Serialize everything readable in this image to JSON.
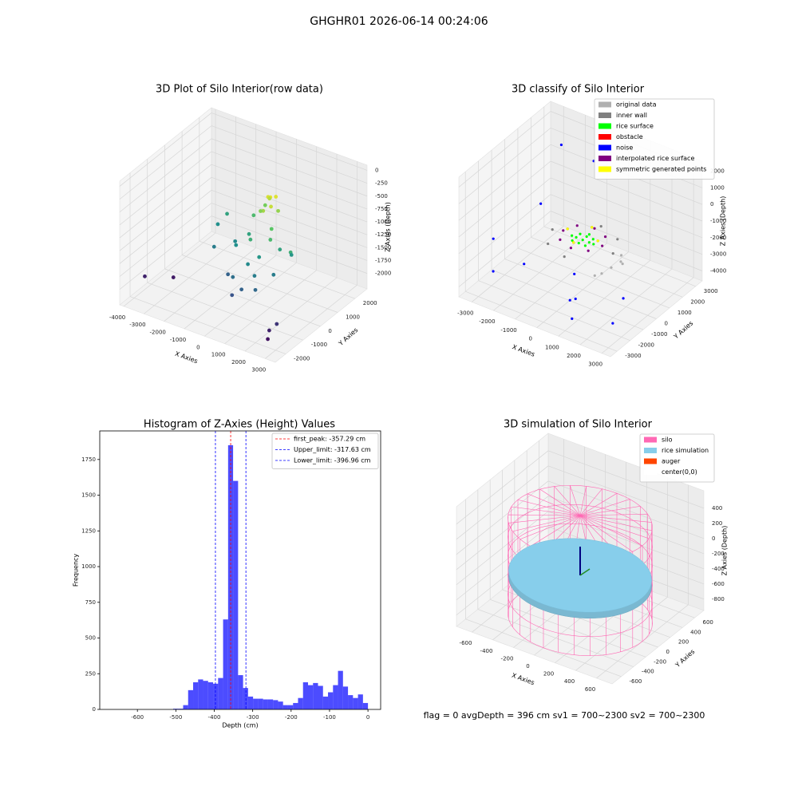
{
  "suptitle": "GHGHR01 2026-06-14 00:24:06",
  "footer": "flag = 0     avgDepth = 396 cm  sv1 = 700~2300  sv2 = 700~2300",
  "chart_data": [
    {
      "type": "scatter3d",
      "title": "3D Plot of Silo Interior(row data)",
      "cmap": "viridis",
      "xlabel": "X Axies",
      "ylabel": "Y Axies",
      "zlabel": "Z Axies (Depth)",
      "xlim": [
        -4200,
        3500
      ],
      "ylim": [
        -2600,
        2700
      ],
      "zlim": [
        -2300,
        100
      ],
      "xticks": [
        -4000,
        -3000,
        -2000,
        -1000,
        0,
        1000,
        2000,
        3000
      ],
      "yticks": [
        -2000,
        -1000,
        0,
        1000,
        2000
      ],
      "zticks": [
        -2000,
        -1750,
        -1500,
        -1250,
        -1000,
        -750,
        -500,
        -250,
        0
      ],
      "series": [
        {
          "x": [
            600,
            400,
            800,
            300,
            700,
            500,
            900,
            200,
            1000,
            1200,
            300,
            -200,
            900,
            1500,
            600,
            -500,
            1100,
            200,
            1700,
            -800,
            800,
            1400,
            -300,
            500,
            -1800,
            -2000,
            -1500,
            2200,
            1900,
            -3900,
            -3000,
            2600,
            2700,
            2800,
            0,
            -400
          ],
          "y": [
            500,
            600,
            300,
            800,
            700,
            200,
            600,
            400,
            100,
            -200,
            -300,
            200,
            -500,
            0,
            -800,
            -200,
            -1000,
            -1200,
            -600,
            100,
            -1400,
            -1300,
            -900,
            -1600,
            800,
            500,
            -300,
            -200,
            200,
            -1500,
            -900,
            -1900,
            -2100,
            -1700,
            900,
            700
          ],
          "z": [
            -350,
            -400,
            -450,
            -500,
            -380,
            -550,
            -600,
            -650,
            -800,
            -900,
            -1000,
            -1100,
            -1200,
            -1100,
            -1300,
            -1250,
            -1400,
            -1500,
            -1400,
            -1300,
            -1600,
            -1550,
            -1600,
            -1700,
            -1100,
            -1250,
            -1400,
            -1000,
            -1200,
            -2000,
            -2050,
            -2000,
            -2100,
            -1900,
            -700,
            -900
          ]
        }
      ]
    },
    {
      "type": "scatter3d",
      "title": "3D classify of Silo Interior",
      "xlabel": "X Axies",
      "ylabel": "Y Axies",
      "zlabel": "Z Axies (Depth)",
      "xlim": [
        -3600,
        3400
      ],
      "ylim": [
        -3500,
        3500
      ],
      "zlim": [
        -4600,
        2600
      ],
      "xticks": [
        -3000,
        -2000,
        -1000,
        0,
        1000,
        2000,
        3000
      ],
      "yticks": [
        -3000,
        -2000,
        -1000,
        0,
        1000,
        2000,
        3000
      ],
      "zticks": [
        -4000,
        -3000,
        -2000,
        -1000,
        0,
        1000,
        2000
      ],
      "series": [
        {
          "name": "original data",
          "color": "#b0b0b0",
          "x": [
            1500,
            1700,
            1300,
            1900,
            1100,
            1600
          ],
          "y": [
            -300,
            100,
            -700,
            -100,
            -900,
            300
          ],
          "z": [
            -2300,
            -2100,
            -2500,
            -2000,
            -2600,
            -1900
          ]
        },
        {
          "name": "inner wall",
          "color": "#808080",
          "x": [
            1400,
            -1400,
            0,
            0,
            1000,
            -1000
          ],
          "y": [
            0,
            0,
            1400,
            -1400,
            1000,
            -1000
          ],
          "z": [
            -1700,
            -1700,
            -1700,
            -1700,
            -1700,
            -1700
          ]
        },
        {
          "name": "rice surface",
          "color": "#00ff00",
          "x": [
            0,
            300,
            -300,
            0,
            0,
            500,
            -500,
            300,
            -300,
            300,
            -300,
            0
          ],
          "y": [
            0,
            0,
            0,
            300,
            -300,
            0,
            0,
            300,
            300,
            -300,
            -300,
            500
          ],
          "z": [
            -1600,
            -1600,
            -1600,
            -1600,
            -1600,
            -1600,
            -1600,
            -1600,
            -1600,
            -1600,
            -1600,
            -1600
          ]
        },
        {
          "name": "obstacle",
          "color": "#ff0000",
          "x": [],
          "y": [],
          "z": []
        },
        {
          "name": "noise",
          "color": "#0000ff",
          "x": [
            -3400,
            -2800,
            -2300,
            -2500,
            -1800,
            500,
            1000,
            2600,
            2900,
            -1000,
            400,
            1200
          ],
          "y": [
            -1200,
            -2200,
            600,
            2500,
            -1500,
            -1800,
            -2200,
            -1200,
            -2500,
            2500,
            -1300,
            -2800
          ],
          "z": [
            -2500,
            -3500,
            -1000,
            1200,
            -3000,
            -3800,
            -3200,
            -3000,
            -3500,
            1000,
            -2600,
            -3900
          ]
        },
        {
          "name": "interpolated rice surface",
          "color": "#800080",
          "x": [
            900,
            -900,
            0,
            0,
            650,
            -650,
            650,
            -650
          ],
          "y": [
            0,
            0,
            900,
            -900,
            650,
            650,
            -650,
            -650
          ],
          "z": [
            -1500,
            -1500,
            -1500,
            -1500,
            -1500,
            -1500,
            -1500,
            -1500
          ]
        },
        {
          "name": "symmetric generated points",
          "color": "#ffff00",
          "x": [
            700,
            -700,
            0,
            0
          ],
          "y": [
            0,
            0,
            700,
            -700
          ],
          "z": [
            -1300,
            -1300,
            -1300,
            -1300
          ]
        }
      ]
    },
    {
      "type": "histogram",
      "title": "Histogram of Z-Axies (Height) Values",
      "color": "#0000ff",
      "xlabel": "Depth (cm)",
      "ylabel": "Frequency",
      "xlim": [
        -698,
        33
      ],
      "ylim": [
        0,
        1950
      ],
      "xticks": [
        -600,
        -500,
        -400,
        -300,
        -200,
        -100,
        0
      ],
      "yticks": [
        0,
        250,
        500,
        750,
        1000,
        1250,
        1500,
        1750
      ],
      "bins": [
        -507,
        -494,
        -481,
        -468,
        -455,
        -442,
        -429,
        -416,
        -403,
        -390,
        -377,
        -364,
        -351,
        -338,
        -325,
        -312,
        -299,
        -286,
        -273,
        -260,
        -247,
        -234,
        -221,
        -208,
        -195,
        -182,
        -169,
        -156,
        -143,
        -130,
        -117,
        -104,
        -91,
        -78,
        -65,
        -52,
        -39,
        -26,
        -13,
        0
      ],
      "values": [
        5,
        5,
        30,
        135,
        190,
        210,
        200,
        190,
        180,
        220,
        630,
        1850,
        1600,
        240,
        150,
        90,
        75,
        75,
        70,
        70,
        65,
        55,
        30,
        30,
        45,
        80,
        190,
        170,
        185,
        165,
        90,
        120,
        170,
        270,
        160,
        100,
        80,
        105,
        45
      ],
      "lines": [
        {
          "label": "first_peak: -357.29 cm",
          "value": -357.29,
          "color": "#ff0000"
        },
        {
          "label": "Upper_limit: -317.63 cm",
          "value": -317.63,
          "color": "#0000ff"
        },
        {
          "label": "Lower_limit: -396.96 cm",
          "value": -396.96,
          "color": "#0000ff"
        }
      ]
    },
    {
      "type": "simulation3d",
      "title": "3D simulation of Silo Interior",
      "xlabel": "X Axies",
      "ylabel": "Y Axies",
      "zlabel": "Z Axies (Depth)",
      "xlim": [
        -750,
        750
      ],
      "ylim": [
        -750,
        750
      ],
      "zlim": [
        -950,
        630
      ],
      "xticks": [
        -600,
        -400,
        -200,
        0,
        200,
        400,
        600
      ],
      "yticks": [
        -600,
        -400,
        -200,
        0,
        200,
        400,
        600
      ],
      "zticks": [
        -800,
        -600,
        -400,
        -200,
        0,
        200,
        400
      ],
      "series": [
        {
          "name": "silo",
          "color": "#ff69b4"
        },
        {
          "name": "rice simulation",
          "color": "#87ceeb"
        },
        {
          "name": "auger",
          "color": "#ff4500"
        },
        {
          "name": "center(0,0)",
          "color": "#ffffff"
        }
      ]
    }
  ]
}
